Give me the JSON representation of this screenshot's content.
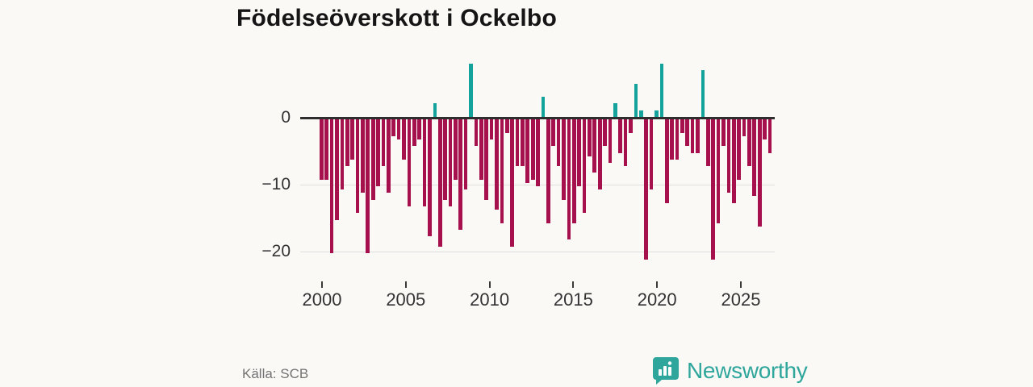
{
  "title": "Födelseöverskott i Ockelbo",
  "source_note": "Källa: SCB",
  "brand": {
    "name": "Newsworthy",
    "icon": "bar-chart-speech-bubble-icon",
    "color": "#2FA69C"
  },
  "chart_data": {
    "type": "bar",
    "title": "Födelseöverskott i Ockelbo",
    "xlabel": "",
    "ylabel": "",
    "x_range_years": [
      2000,
      2025.5
    ],
    "x_tick_labels": [
      "2000",
      "2005",
      "2010",
      "2015",
      "2020",
      "2025"
    ],
    "x_tick_years": [
      2000,
      2005,
      2010,
      2015,
      2020,
      2025
    ],
    "y_tick_labels": [
      "0",
      "−10",
      "−20"
    ],
    "y_tick_values": [
      0,
      -10,
      -20
    ],
    "ylim": [
      -24,
      9.2
    ],
    "grid": "horizontal",
    "legend": "none",
    "colors": {
      "positive": "#14A29C",
      "negative": "#A5104D"
    },
    "series": [
      {
        "name": "Födelseöverskott",
        "values": [
          -9,
          -9,
          -20,
          -15,
          -10.5,
          -7,
          -6,
          -14,
          -11,
          -20,
          -12,
          -10,
          -7,
          -11,
          -2.5,
          -3,
          -6,
          -13,
          -4,
          -3,
          -13,
          -17.5,
          2,
          -19,
          -12,
          -13,
          -9,
          -16.5,
          -10.5,
          8,
          -4,
          -9,
          -12,
          -3,
          -13.5,
          -15.5,
          -2,
          -19,
          -7,
          -7,
          -9.5,
          -9,
          -10,
          3,
          -15.5,
          -4,
          -7,
          -12,
          -18,
          -15.5,
          -10,
          -14,
          -5.5,
          -8,
          -10.5,
          -4,
          -6.5,
          2,
          -5,
          -7,
          -2,
          5,
          1,
          -21,
          -10.5,
          1,
          8,
          -12.5,
          -6,
          -6,
          -2,
          -4,
          -5,
          -5,
          7,
          -7,
          -21,
          -15.5,
          -4,
          -11,
          -12.5,
          -9,
          -2.5,
          -7,
          -11.5,
          -16,
          -3,
          -5
        ]
      }
    ]
  }
}
